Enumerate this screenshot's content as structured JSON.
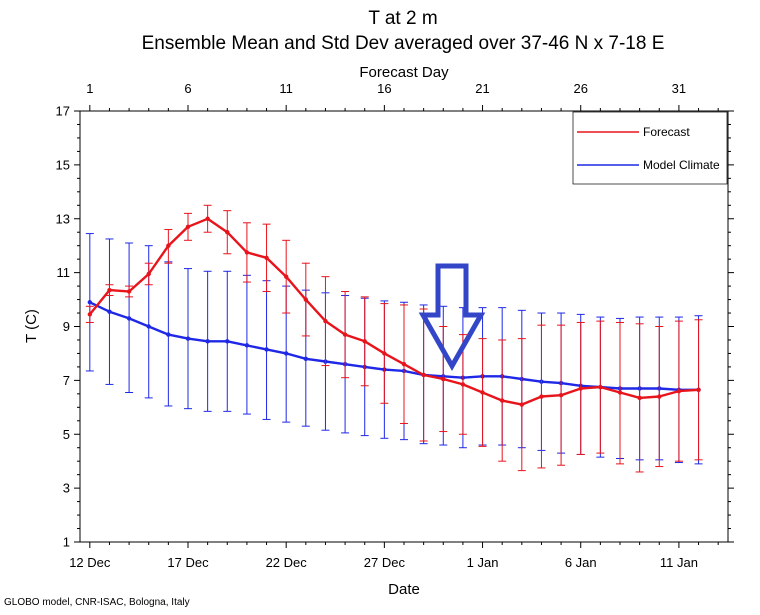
{
  "chart_data": {
    "type": "line",
    "title": "T at 2 m",
    "subtitle": "Ensemble Mean and Std Dev averaged over 37-46 N x 7-18 E",
    "xlabel": "Date",
    "x2label": "Forecast Day",
    "ylabel": "T (C)",
    "ylim": [
      1,
      17
    ],
    "yticks": [
      1,
      3,
      5,
      7,
      9,
      11,
      13,
      15,
      17
    ],
    "xlim": [
      0.5,
      33.5
    ],
    "x": [
      1,
      2,
      3,
      4,
      5,
      6,
      7,
      8,
      9,
      10,
      11,
      12,
      13,
      14,
      15,
      16,
      17,
      18,
      19,
      20,
      21,
      22,
      23,
      24,
      25,
      26,
      27,
      28,
      29,
      30,
      31,
      32
    ],
    "x_ticks_bottom": [
      {
        "day": 1,
        "label": "12 Dec"
      },
      {
        "day": 6,
        "label": "17 Dec"
      },
      {
        "day": 11,
        "label": "22 Dec"
      },
      {
        "day": 16,
        "label": "27 Dec"
      },
      {
        "day": 21,
        "label": "1 Jan"
      },
      {
        "day": 26,
        "label": "6 Jan"
      },
      {
        "day": 31,
        "label": "11 Jan"
      }
    ],
    "x_ticks_top": [
      {
        "day": 1,
        "label": "1"
      },
      {
        "day": 6,
        "label": "6"
      },
      {
        "day": 11,
        "label": "11"
      },
      {
        "day": 16,
        "label": "16"
      },
      {
        "day": 21,
        "label": "21"
      },
      {
        "day": 26,
        "label": "26"
      },
      {
        "day": 31,
        "label": "31"
      }
    ],
    "legend_position": "top-right",
    "grid": false,
    "series": [
      {
        "name": "Forecast",
        "color": "#e8141c",
        "values": [
          9.45,
          10.35,
          10.3,
          10.95,
          12.0,
          12.7,
          13.0,
          12.5,
          11.75,
          11.55,
          10.85,
          10.0,
          9.2,
          8.7,
          8.45,
          8.0,
          7.6,
          7.2,
          7.05,
          6.85,
          6.55,
          6.25,
          6.1,
          6.4,
          6.45,
          6.7,
          6.75,
          6.55,
          6.35,
          6.4,
          6.6,
          6.65
        ],
        "err_upper": [
          9.75,
          10.55,
          10.5,
          11.35,
          12.6,
          13.2,
          13.5,
          13.3,
          12.85,
          12.8,
          12.2,
          11.35,
          10.85,
          10.3,
          10.1,
          9.85,
          9.8,
          9.65,
          9.0,
          8.7,
          8.55,
          8.5,
          8.55,
          9.05,
          9.05,
          9.15,
          9.2,
          9.15,
          9.1,
          9.0,
          9.2,
          9.25
        ],
        "err_lower": [
          9.15,
          10.15,
          10.1,
          10.55,
          11.35,
          12.2,
          12.5,
          11.7,
          10.65,
          10.3,
          9.5,
          8.65,
          7.55,
          7.1,
          6.8,
          6.15,
          5.4,
          4.75,
          5.1,
          5.0,
          4.55,
          4.0,
          3.65,
          3.75,
          3.85,
          4.25,
          4.3,
          3.9,
          3.6,
          3.8,
          4.0,
          4.05
        ]
      },
      {
        "name": "Model Climate",
        "color": "#1e28e6",
        "values": [
          9.9,
          9.55,
          9.3,
          9.0,
          8.7,
          8.55,
          8.45,
          8.45,
          8.3,
          8.15,
          8.0,
          7.8,
          7.7,
          7.6,
          7.5,
          7.4,
          7.35,
          7.2,
          7.15,
          7.1,
          7.15,
          7.15,
          7.05,
          6.95,
          6.9,
          6.8,
          6.75,
          6.7,
          6.7,
          6.7,
          6.65,
          6.65
        ],
        "err_upper": [
          12.45,
          12.25,
          12.1,
          12.0,
          11.4,
          11.15,
          11.05,
          11.05,
          10.9,
          10.7,
          10.5,
          10.35,
          10.25,
          10.15,
          10.05,
          9.95,
          9.9,
          9.8,
          9.75,
          9.7,
          9.7,
          9.7,
          9.6,
          9.5,
          9.5,
          9.45,
          9.35,
          9.3,
          9.35,
          9.35,
          9.35,
          9.4
        ],
        "err_lower": [
          7.35,
          6.85,
          6.55,
          6.35,
          6.05,
          5.95,
          5.85,
          5.85,
          5.75,
          5.55,
          5.45,
          5.3,
          5.15,
          5.05,
          4.95,
          4.85,
          4.8,
          4.65,
          4.6,
          4.5,
          4.6,
          4.6,
          4.5,
          4.4,
          4.3,
          4.25,
          4.15,
          4.1,
          4.05,
          4.05,
          3.95,
          3.9
        ]
      }
    ]
  },
  "footer": "GLOBO model, CNR-ISAC, Bologna, Italy"
}
